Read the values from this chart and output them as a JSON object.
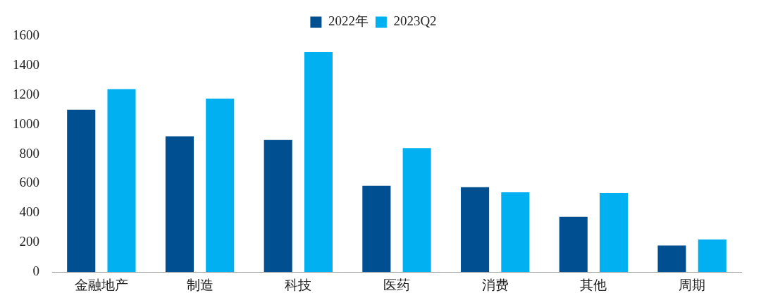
{
  "chart_data": {
    "type": "bar",
    "categories": [
      "金融地产",
      "制造",
      "科技",
      "医药",
      "消费",
      "其他",
      "周期"
    ],
    "series": [
      {
        "name": "2022年",
        "color": "#004f91",
        "values": [
          1100,
          920,
          895,
          585,
          575,
          375,
          180
        ]
      },
      {
        "name": "2023Q2",
        "color": "#00b0f0",
        "values": [
          1240,
          1175,
          1490,
          840,
          540,
          535,
          220
        ]
      }
    ],
    "ylim": [
      0,
      1600
    ],
    "yticks": [
      0,
      200,
      400,
      600,
      800,
      1000,
      1200,
      1400,
      1600
    ],
    "grid": false,
    "legend": "top"
  }
}
